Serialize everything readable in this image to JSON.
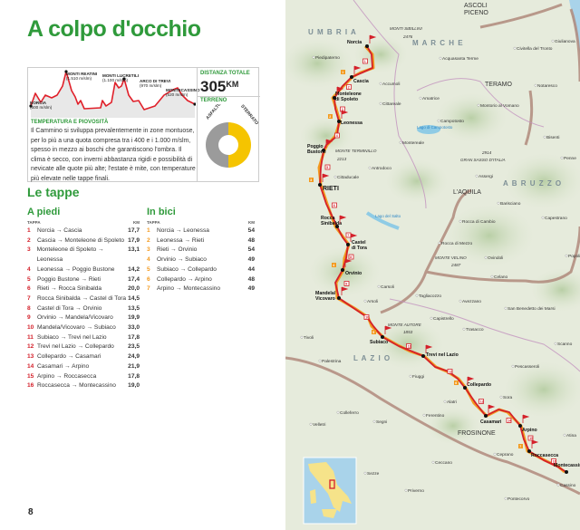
{
  "title": "A colpo d'occhio",
  "profile": {
    "peaks": [
      {
        "name": "NORCIA",
        "alt": "(600 m/slm)"
      },
      {
        "name": "MONTI REATINI",
        "alt": "(1.510 m/slm)"
      },
      {
        "name": "MONTI LUCRETILI",
        "alt": "(1.100 m/slm)"
      },
      {
        "name": "ARCO DI TREVI",
        "alt": "(970 m/slm)"
      },
      {
        "name": "MONTECASSINO",
        "alt": "(520 m/slm)"
      }
    ]
  },
  "distance": {
    "label": "DISTANZA TOTALE",
    "value": "305",
    "unit": "KM"
  },
  "terrain": {
    "label": "TERRENO",
    "segments": [
      {
        "name": "ASFALTO",
        "percent": 50,
        "color": "#9b9b9b"
      },
      {
        "name": "STERRATO",
        "percent": 50,
        "color": "#f5c400"
      }
    ]
  },
  "climate": {
    "label": "TEMPERATURA E PIOVOSITÀ",
    "text": "Il Cammino si sviluppa prevalentemente in zone montuose, per lo più a una quota compresa tra i 400 e i 1.000 m/slm, spesso in mezzo ai boschi che garantiscono l'ombra. Il clima è secco, con inverni abbastanza rigidi e possibilità di nevicate alle quote più alte; l'estate è mite, con temperature più elevate nelle tappe finali."
  },
  "stages_title": "Le tappe",
  "walk": {
    "title": "A piedi",
    "col_stage": "TAPPA",
    "col_km": "KM",
    "rows": [
      {
        "n": "1",
        "route": "Norcia → Cascia",
        "km": "17,7"
      },
      {
        "n": "2",
        "route": "Cascia → Monteleone di Spoleto",
        "km": "17,9"
      },
      {
        "n": "3",
        "route": "Monteleone di Spoleto → Leonessa",
        "km": "13,1"
      },
      {
        "n": "4",
        "route": "Leonessa → Poggio Bustone",
        "km": "14,2"
      },
      {
        "n": "5",
        "route": "Poggio Bustone → Rieti",
        "km": "17,4"
      },
      {
        "n": "6",
        "route": "Rieti → Rocca Sinibalda",
        "km": "20,0"
      },
      {
        "n": "7",
        "route": "Rocca Sinibalda → Castel di Tora",
        "km": "14,5"
      },
      {
        "n": "8",
        "route": "Castel di Tora → Orvinio",
        "km": "13,5"
      },
      {
        "n": "9",
        "route": "Orvinio → Mandela/Vicovaro",
        "km": "19,9"
      },
      {
        "n": "10",
        "route": "Mandela/Vicovaro → Subiaco",
        "km": "33,0"
      },
      {
        "n": "11",
        "route": "Subiaco → Trevi nel Lazio",
        "km": "17,8"
      },
      {
        "n": "12",
        "route": "Trevi nel Lazio → Collepardo",
        "km": "23,5"
      },
      {
        "n": "13",
        "route": "Collepardo → Casamari",
        "km": "24,9"
      },
      {
        "n": "14",
        "route": "Casamari → Arpino",
        "km": "21,9"
      },
      {
        "n": "15",
        "route": "Arpino → Roccasecca",
        "km": "17,8"
      },
      {
        "n": "16",
        "route": "Roccasecca → Montecassino",
        "km": "19,0"
      }
    ]
  },
  "bike": {
    "title": "In bici",
    "col_stage": "TAPPA",
    "col_km": "KM",
    "rows": [
      {
        "n": "1",
        "route": "Norcia → Leonessa",
        "km": "54"
      },
      {
        "n": "2",
        "route": "Leonessa → Rieti",
        "km": "48"
      },
      {
        "n": "3",
        "route": "Rieti → Orvinio",
        "km": "54"
      },
      {
        "n": "4",
        "route": "Orvinio → Subiaco",
        "km": "49"
      },
      {
        "n": "5",
        "route": "Subiaco → Collepardo",
        "km": "44"
      },
      {
        "n": "6",
        "route": "Collepardo → Arpino",
        "km": "48"
      },
      {
        "n": "7",
        "route": "Arpino → Montecassino",
        "km": "49"
      }
    ]
  },
  "page_number": "8",
  "colors": {
    "accent": "#2f9a3b",
    "walk": "#d4202a",
    "bike": "#f39a1f"
  },
  "map": {
    "stops": [
      "Norcia",
      "Cascia",
      "Monteleone di Spoleto",
      "Leonessa",
      "Poggio Bustone",
      "RIETI",
      "Rocca Sinibalda",
      "Castel di Tora",
      "Orvinio",
      "Mandela/ Vicovaro",
      "Subiaco",
      "Trevi nel Lazio",
      "Collepardo",
      "Casamari",
      "Arpino",
      "Roccasecca",
      "Montecassino"
    ],
    "regions": [
      "UMBRIA",
      "MARCHE",
      "ABRUZZO",
      "LAZIO"
    ],
    "cities": [
      "ASCOLI PICENO",
      "TERAMO",
      "L'AQUILA",
      "FROSINONE"
    ],
    "mountains": [
      "MONTI SIBILLINI",
      "2476",
      "MONTE TERMINILLO",
      "2213",
      "GRAN SASSO D'ITALIA",
      "2914",
      "MONTE VELINO",
      "2487",
      "MONTE AUTORE",
      "1853"
    ],
    "lakes": [
      "Lago di Campotosto",
      "Lago del Salto"
    ],
    "towns": [
      "Piedipaterno",
      "Acquasanta Terme",
      "Civitella del Tronto",
      "Giulianova",
      "Notaresco",
      "Accumoli",
      "Amatrice",
      "Cittareale",
      "Montorio al Vomano",
      "Campotosto",
      "Montereale",
      "Bisenti",
      "Penne",
      "Antrodoco",
      "Cittaducale",
      "Assergi",
      "Barisciano",
      "Capestrano",
      "Rocca di Cambio",
      "Rocca di Mezzo",
      "Popoli",
      "Ovindoli",
      "Celano",
      "Carsoli",
      "Tagliacozzo",
      "Arsoli",
      "Avezzano",
      "San Benedetto dei Marsi",
      "Capistrello",
      "Trasacco",
      "Scanno",
      "Tivoli",
      "Palestrina",
      "Pescasseroli",
      "Fiuggi",
      "Alatri",
      "Sora",
      "Colleferro",
      "Ferentino",
      "Velletri",
      "Segni",
      "Atina",
      "Ceprano",
      "Ceccano",
      "Sezze",
      "Priverno",
      "Pontecorvo",
      "Cassino"
    ]
  }
}
